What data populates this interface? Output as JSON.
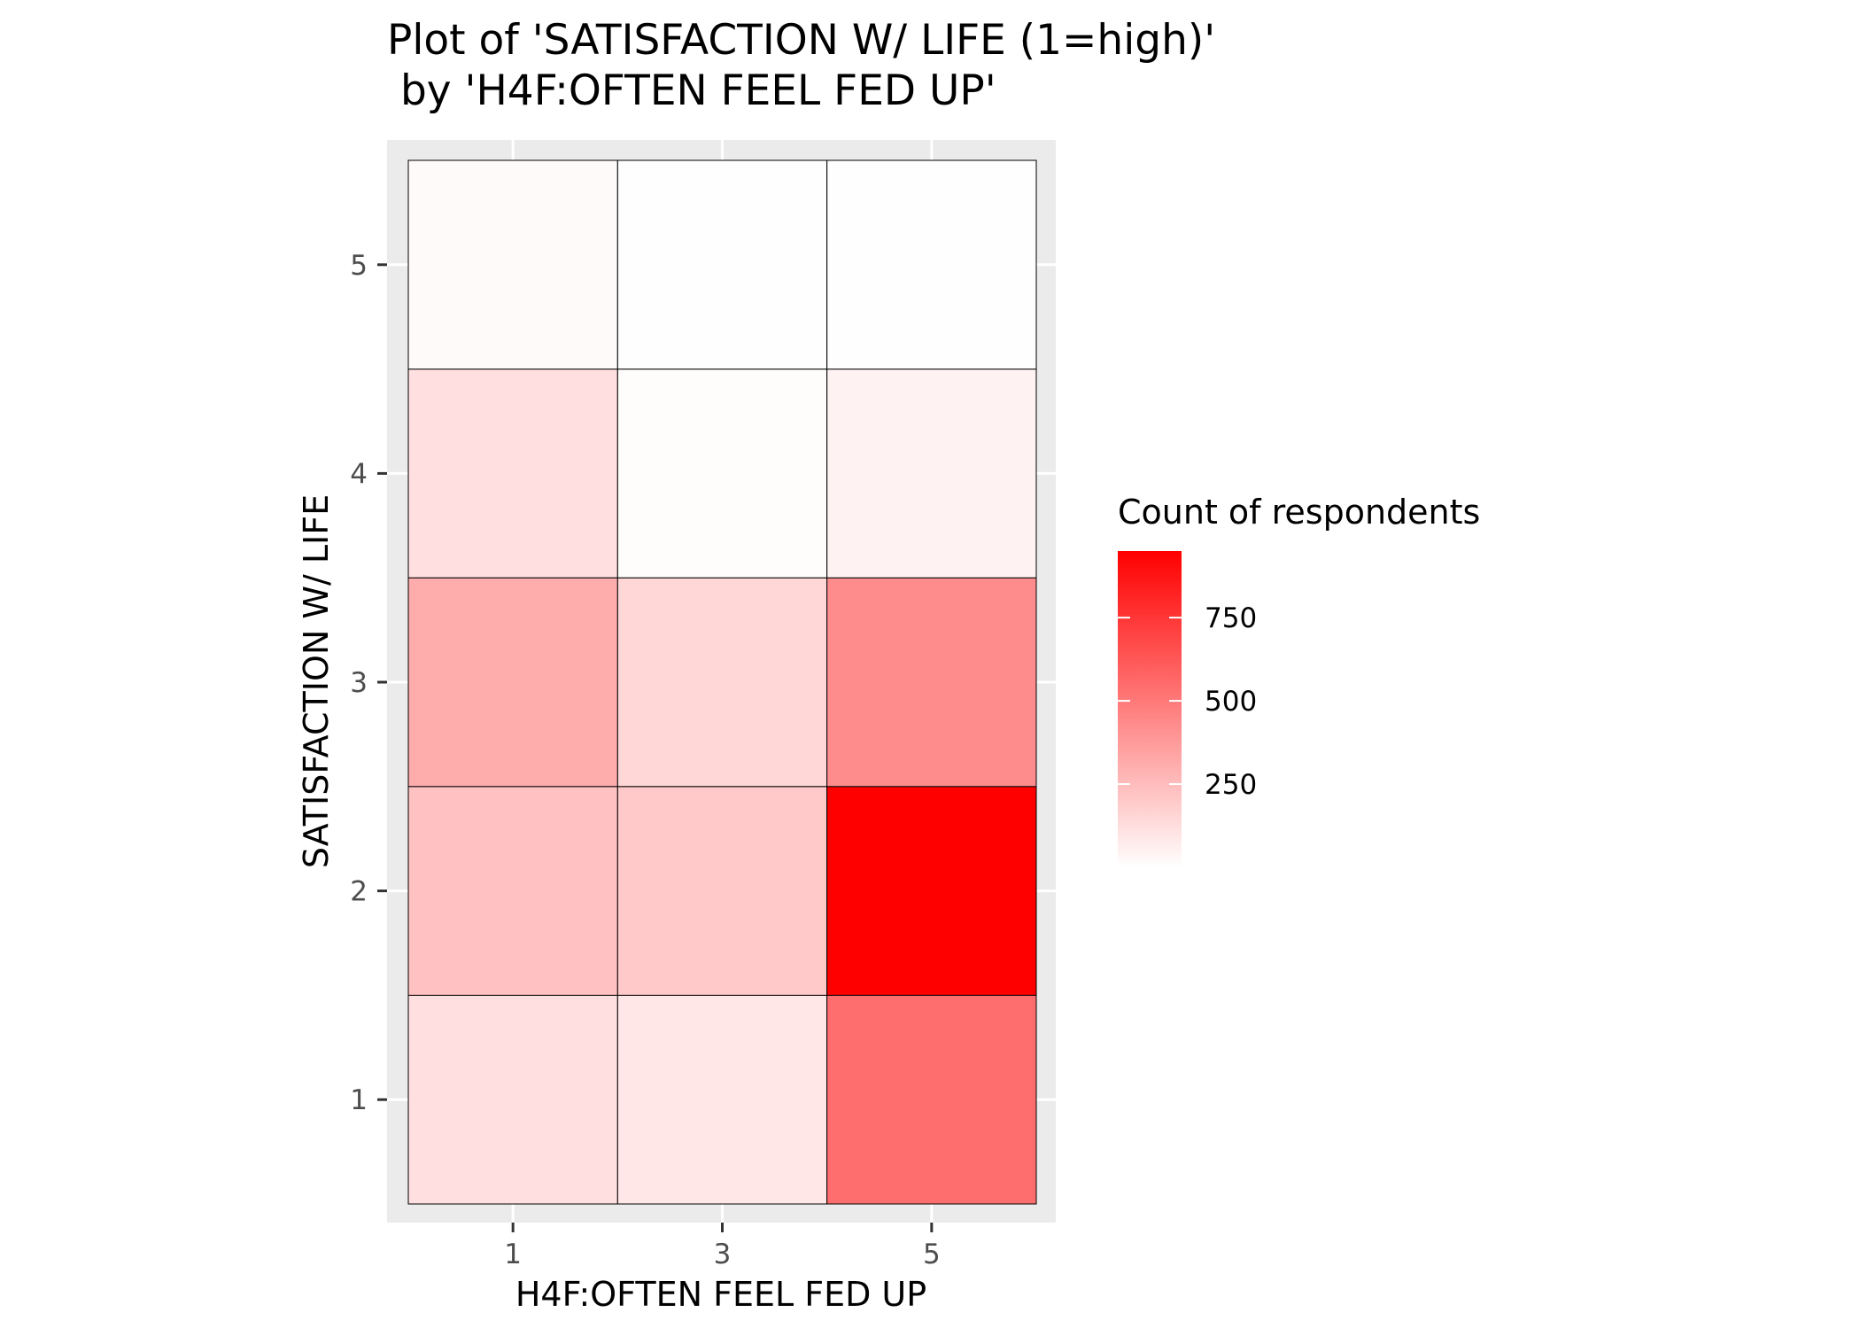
{
  "chart_data": {
    "type": "heatmap",
    "title_line1": "Plot of 'SATISFACTION W/ LIFE (1=high)'",
    "title_line2": " by 'H4F:OFTEN FEEL FED UP'",
    "xlabel": "H4F:OFTEN FEEL FED UP",
    "ylabel": "SATISFACTION W/ LIFE",
    "x_categories": [
      1,
      3,
      5
    ],
    "x_tick_labels": [
      "1",
      "3",
      "5"
    ],
    "y_categories": [
      1,
      2,
      3,
      4,
      5
    ],
    "y_tick_labels": [
      "1",
      "2",
      "3",
      "4",
      "5"
    ],
    "cells": [
      {
        "x": 1,
        "y": 1,
        "value": 120
      },
      {
        "x": 3,
        "y": 1,
        "value": 90
      },
      {
        "x": 5,
        "y": 1,
        "value": 540
      },
      {
        "x": 1,
        "y": 2,
        "value": 230
      },
      {
        "x": 3,
        "y": 2,
        "value": 200
      },
      {
        "x": 5,
        "y": 2,
        "value": 950
      },
      {
        "x": 1,
        "y": 3,
        "value": 310
      },
      {
        "x": 3,
        "y": 3,
        "value": 150
      },
      {
        "x": 5,
        "y": 3,
        "value": 430
      },
      {
        "x": 1,
        "y": 4,
        "value": 120
      },
      {
        "x": 3,
        "y": 4,
        "value": 10
      },
      {
        "x": 5,
        "y": 4,
        "value": 50
      },
      {
        "x": 1,
        "y": 5,
        "value": 20
      },
      {
        "x": 3,
        "y": 5,
        "value": 2
      },
      {
        "x": 5,
        "y": 5,
        "value": 3
      }
    ],
    "legend": {
      "title": "Count of respondents",
      "min": 0,
      "max": 950,
      "ticks": [
        250,
        500,
        750
      ],
      "tick_labels": [
        "250",
        "500",
        "750"
      ],
      "low_color": "#ffffff",
      "high_color": "#ff0000",
      "placement": "right"
    },
    "panel_background": "#ebebeb",
    "grid_color": "#ffffff",
    "grid": true
  }
}
